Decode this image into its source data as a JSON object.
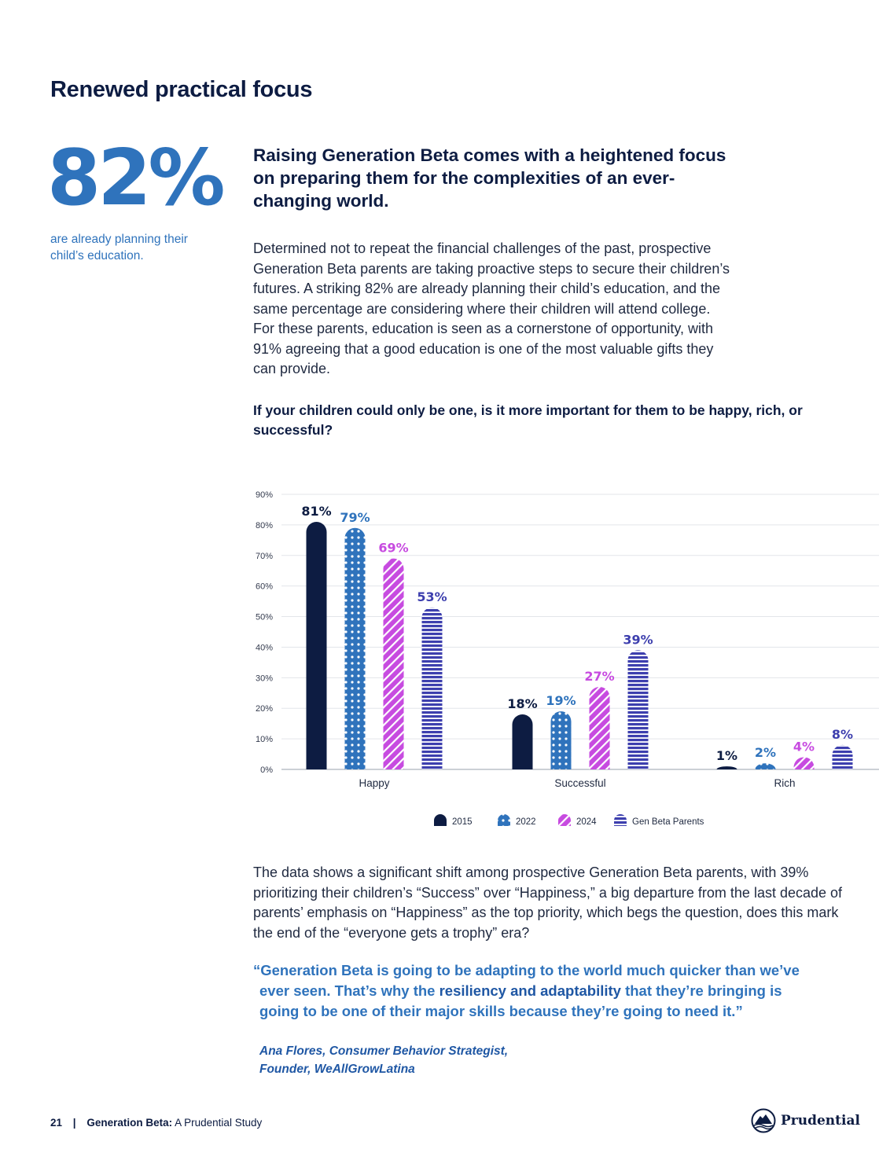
{
  "page": {
    "section_title": "Renewed practical focus",
    "stat": {
      "value": "82%",
      "caption": "are already planning their child’s education."
    },
    "lead": "Raising Generation Beta comes with a heightened focus on preparing them for the complexities of an ever-changing world.",
    "body1": "Determined not to repeat the financial challenges of the past, prospective Generation Beta parents are taking proactive steps to secure their children’s futures. A striking 82% are already planning their child’s education, and the same percentage are considering where their children will attend college. For these parents, education is seen as a cornerstone of opportunity, with 91% agreeing that a good education is one of the most valuable gifts they can provide.",
    "body2": "The data shows a significant shift among prospective Generation Beta parents, with 39% prioritizing their children’s “Success” over “Happiness,” a big departure from the last decade of parents’ emphasis on “Happiness” as the top priority, which begs the question, does this mark the end of the “everyone gets a trophy” era?",
    "quote": {
      "line1": "“Generation Beta is going to be adapting to the world much quicker than we’ve",
      "line2_pre": "ever seen. That’s why the ",
      "line2_strong": "resiliency and adaptability",
      "line2_post": " that they’re bringing is",
      "line3": "going to be one of their major skills because they’re going to need it.”"
    },
    "attribution": {
      "line1": "Ana Flores, Consumer Behavior Strategist,",
      "line2": "Founder, WeAllGrowLatina"
    },
    "footer": {
      "page_number": "21",
      "separator": "|",
      "brand": "Generation Beta:",
      "subtitle": "A Prudential Study"
    },
    "logo_text": "Prudential"
  },
  "chart_data": {
    "type": "bar",
    "title": "If your children could only be one, is it more important for them to be happy, rich, or successful?",
    "categories": [
      "Happy",
      "Successful",
      "Rich"
    ],
    "series": [
      {
        "name": "2015",
        "values": [
          81,
          18,
          1
        ],
        "color": "#0d1c42",
        "pattern": "solid"
      },
      {
        "name": "2022",
        "values": [
          79,
          19,
          2
        ],
        "color": "#2f73bc",
        "pattern": "dots"
      },
      {
        "name": "2024",
        "values": [
          69,
          27,
          4
        ],
        "color": "#c74be0",
        "pattern": "diagonal-lines"
      },
      {
        "name": "Gen Beta Parents",
        "values": [
          53,
          39,
          8
        ],
        "color": "#3d3fae",
        "pattern": "horizontal-stripes"
      }
    ],
    "yticks": [
      "0%",
      "10%",
      "20%",
      "30%",
      "40%",
      "50%",
      "60%",
      "70%",
      "80%",
      "90%"
    ],
    "ylim": [
      0,
      90
    ],
    "unit": "%",
    "grid": true,
    "legend_position": "bottom"
  }
}
